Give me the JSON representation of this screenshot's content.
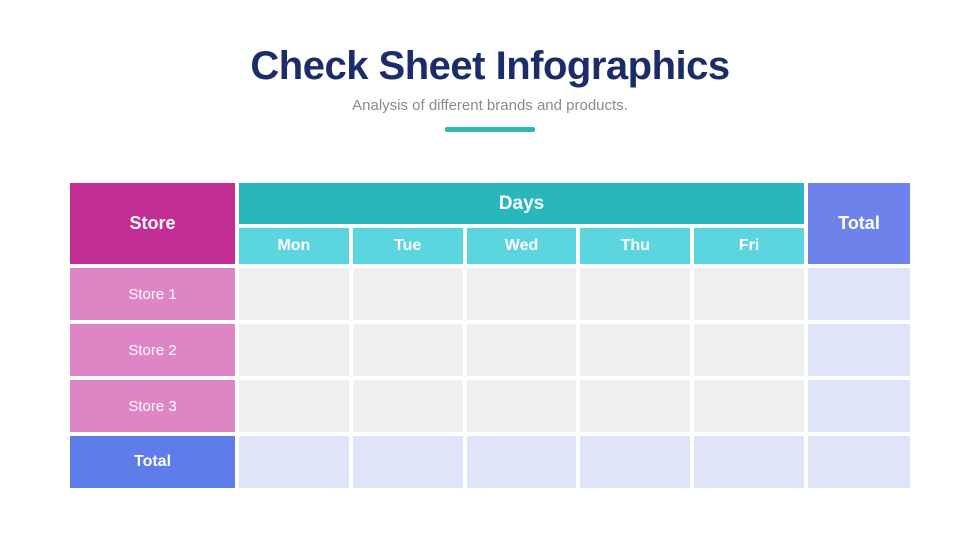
{
  "slide": {
    "title": "Check Sheet Infographics",
    "subtitle": "Analysis of different brands and products."
  },
  "table": {
    "store_header": "Store",
    "days_header": "Days",
    "total_column_header": "Total",
    "day_columns": [
      "Mon",
      "Tue",
      "Wed",
      "Thu",
      "Fri"
    ],
    "store_rows": [
      {
        "label": "Store 1",
        "cells": [
          "",
          "",
          "",
          "",
          ""
        ],
        "total": ""
      },
      {
        "label": "Store 2",
        "cells": [
          "",
          "",
          "",
          "",
          ""
        ],
        "total": ""
      },
      {
        "label": "Store 3",
        "cells": [
          "",
          "",
          "",
          "",
          ""
        ],
        "total": ""
      }
    ],
    "total_row": {
      "label": "Total",
      "cells": [
        "",
        "",
        "",
        "",
        ""
      ],
      "total": ""
    }
  },
  "colors": {
    "title_navy": "#1B2C6B",
    "subtitle_gray": "#8A8A8A",
    "accent_teal": "#2FB7B2",
    "store_header_magenta": "#C22E94",
    "store_row_pink": "#DD85C5",
    "days_header_teal": "#28B7BD",
    "day_subheader_teal": "#5BD6DF",
    "total_column_periwinkle": "#6E82EC",
    "total_row_blue": "#5E7CEA",
    "empty_cell_gray": "#F0EFEF",
    "total_cell_lavender": "#DFE4F8"
  },
  "chart_data": {
    "type": "table",
    "title": "Check Sheet Infographics",
    "subtitle": "Analysis of different brands and products.",
    "column_group": {
      "label": "Days",
      "spans": [
        "Mon",
        "Tue",
        "Wed",
        "Thu",
        "Fri"
      ]
    },
    "columns": [
      "Store",
      "Mon",
      "Tue",
      "Wed",
      "Thu",
      "Fri",
      "Total"
    ],
    "rows": [
      [
        "Store 1",
        "",
        "",
        "",
        "",
        "",
        ""
      ],
      [
        "Store 2",
        "",
        "",
        "",
        "",
        "",
        ""
      ],
      [
        "Store 3",
        "",
        "",
        "",
        "",
        "",
        ""
      ],
      [
        "Total",
        "",
        "",
        "",
        "",
        "",
        ""
      ]
    ],
    "layout_hints": {
      "empty_check_sheet": true,
      "grid": "white 4px gaps between cells"
    }
  }
}
